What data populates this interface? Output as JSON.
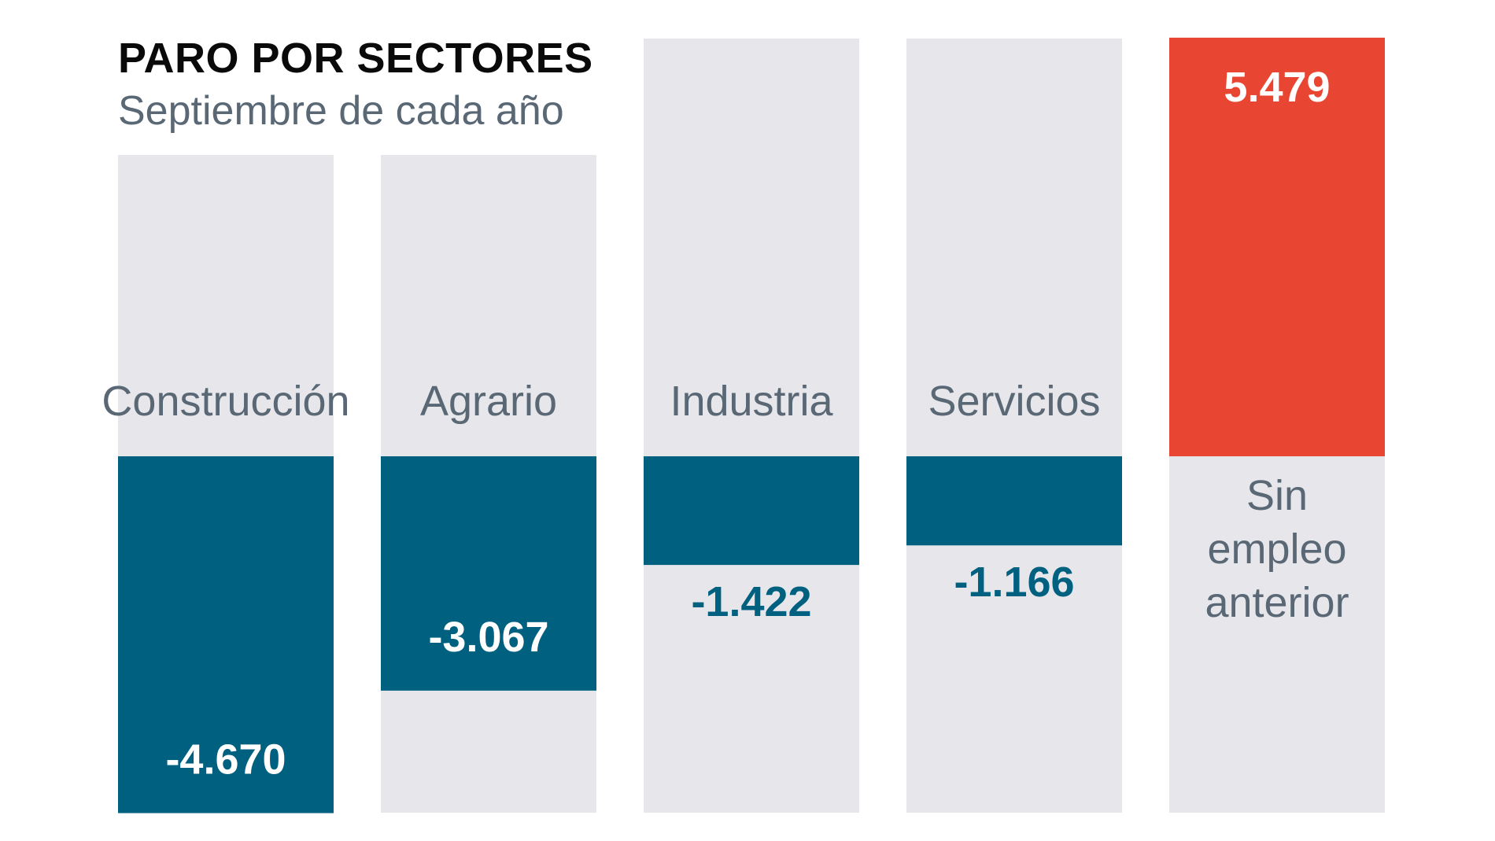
{
  "title": "PARO POR SECTORES",
  "subtitle": "Septiembre de cada año",
  "colors": {
    "background_track": "#e7e7eb",
    "negative": "#00607f",
    "positive": "#e84632",
    "label_inside": "#ffffff",
    "label_outside": "#00607f",
    "category_text": "#5a6875"
  },
  "chart_data": {
    "type": "bar",
    "title": "PARO POR SECTORES",
    "subtitle": "Septiembre de cada año",
    "categories": [
      "Construcción",
      "Agrario",
      "Industria",
      "Servicios",
      "Sin empleo anterior"
    ],
    "category_lines": [
      [
        "Construcción"
      ],
      [
        "Agrario"
      ],
      [
        "Industria"
      ],
      [
        "Servicios"
      ],
      [
        "Sin",
        "empleo",
        "anterior"
      ]
    ],
    "values": [
      -4670,
      -3067,
      -1422,
      -1166,
      5479
    ],
    "value_labels": [
      "-4.670",
      "-3.067",
      "-1.422",
      "-1.166",
      "5.479"
    ],
    "ylim": [
      -4670,
      5479
    ],
    "grid": false,
    "legend": "none"
  }
}
